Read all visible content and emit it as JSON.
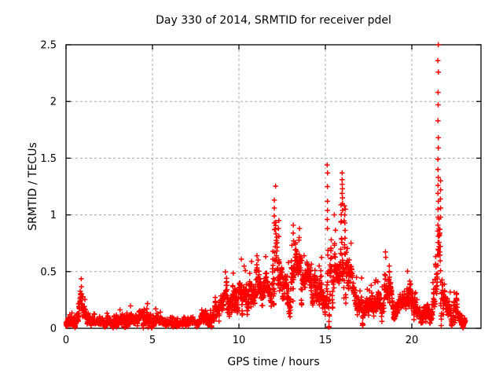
{
  "chart_data": {
    "type": "scatter",
    "title": "Day 330 of 2014, SRMTID for receiver pdel",
    "xlabel": "GPS time / hours",
    "ylabel": "SRMTID / TECUs",
    "xlim": [
      0,
      24
    ],
    "ylim": [
      0,
      2.5
    ],
    "xticks": [
      0,
      5,
      10,
      15,
      20
    ],
    "xtick_labels": [
      "0",
      "5",
      "10",
      "15",
      "20"
    ],
    "yticks": [
      0,
      0.5,
      1,
      1.5,
      2,
      2.5
    ],
    "ytick_labels": [
      "0",
      "0.5",
      "1",
      "1.5",
      "2",
      "2.5"
    ],
    "grid": true,
    "legend": "none",
    "marker": "plus",
    "colors": {
      "marker": "#ff0000",
      "grid": "#a8a8a8",
      "frame": "#000000",
      "text": "#000000",
      "background": "#ffffff"
    },
    "x_start": 0.0,
    "x_end": 23.1,
    "sample_interval_hours": 0.0083333,
    "envelope_note": "piecewise-linear band read off the plot: [hour, typical value, spread] in TECUs",
    "envelope": [
      [
        0.0,
        0.055,
        0.03
      ],
      [
        0.5,
        0.065,
        0.03
      ],
      [
        0.75,
        0.11,
        0.045
      ],
      [
        0.95,
        0.2,
        0.068
      ],
      [
        1.1,
        0.13,
        0.05
      ],
      [
        1.3,
        0.075,
        0.035
      ],
      [
        1.8,
        0.05,
        0.028
      ],
      [
        2.3,
        0.052,
        0.028
      ],
      [
        2.8,
        0.078,
        0.036
      ],
      [
        3.2,
        0.058,
        0.03
      ],
      [
        3.6,
        0.078,
        0.036
      ],
      [
        4.0,
        0.068,
        0.034
      ],
      [
        4.4,
        0.09,
        0.045
      ],
      [
        4.7,
        0.105,
        0.05
      ],
      [
        5.1,
        0.09,
        0.045
      ],
      [
        5.5,
        0.068,
        0.034
      ],
      [
        6.0,
        0.048,
        0.025
      ],
      [
        6.6,
        0.04,
        0.022
      ],
      [
        7.2,
        0.042,
        0.022
      ],
      [
        7.7,
        0.06,
        0.03
      ],
      [
        8.1,
        0.085,
        0.04
      ],
      [
        8.6,
        0.13,
        0.05
      ],
      [
        9.0,
        0.215,
        0.075
      ],
      [
        9.4,
        0.265,
        0.085
      ],
      [
        9.8,
        0.275,
        0.085
      ],
      [
        10.2,
        0.3,
        0.095
      ],
      [
        10.6,
        0.375,
        0.1
      ],
      [
        10.9,
        0.33,
        0.09
      ],
      [
        11.2,
        0.415,
        0.105
      ],
      [
        11.5,
        0.375,
        0.1
      ],
      [
        11.8,
        0.4,
        0.1
      ],
      [
        12.05,
        0.52,
        0.2
      ],
      [
        12.2,
        0.45,
        0.15
      ],
      [
        12.35,
        0.42,
        0.13
      ],
      [
        12.6,
        0.36,
        0.1
      ],
      [
        12.9,
        0.38,
        0.11
      ],
      [
        13.15,
        0.5,
        0.16
      ],
      [
        13.4,
        0.48,
        0.15
      ],
      [
        13.7,
        0.44,
        0.13
      ],
      [
        14.0,
        0.4,
        0.11
      ],
      [
        14.3,
        0.36,
        0.1
      ],
      [
        14.6,
        0.32,
        0.09
      ],
      [
        15.0,
        0.28,
        0.1
      ],
      [
        15.15,
        0.5,
        0.28
      ],
      [
        15.4,
        0.43,
        0.14
      ],
      [
        15.6,
        0.52,
        0.19
      ],
      [
        15.8,
        0.4,
        0.12
      ],
      [
        16.0,
        0.7,
        0.33
      ],
      [
        16.2,
        0.57,
        0.22
      ],
      [
        16.4,
        0.45,
        0.12
      ],
      [
        16.7,
        0.3,
        0.09
      ],
      [
        17.0,
        0.22,
        0.07
      ],
      [
        17.3,
        0.165,
        0.06
      ],
      [
        17.6,
        0.2,
        0.068
      ],
      [
        17.9,
        0.245,
        0.08
      ],
      [
        18.2,
        0.17,
        0.06
      ],
      [
        18.5,
        0.25,
        0.095
      ],
      [
        18.68,
        0.33,
        0.14
      ],
      [
        18.9,
        0.15,
        0.058
      ],
      [
        19.2,
        0.14,
        0.055
      ],
      [
        19.5,
        0.22,
        0.08
      ],
      [
        19.75,
        0.4,
        0.105
      ],
      [
        19.9,
        0.44,
        0.105
      ],
      [
        20.05,
        0.3,
        0.1
      ],
      [
        20.2,
        0.15,
        0.06
      ],
      [
        20.5,
        0.1,
        0.04
      ],
      [
        20.75,
        0.16,
        0.062
      ],
      [
        21.0,
        0.1,
        0.042
      ],
      [
        21.2,
        0.12,
        0.055
      ],
      [
        21.4,
        0.33,
        0.19
      ],
      [
        21.55,
        0.58,
        0.27
      ],
      [
        21.7,
        0.5,
        0.23
      ],
      [
        21.85,
        0.28,
        0.11
      ],
      [
        22.0,
        0.22,
        0.09
      ],
      [
        22.2,
        0.1,
        0.045
      ],
      [
        22.35,
        0.09,
        0.04
      ],
      [
        22.55,
        0.155,
        0.06
      ],
      [
        22.75,
        0.1,
        0.045
      ],
      [
        22.95,
        0.075,
        0.035
      ],
      [
        23.1,
        0.062,
        0.03
      ]
    ],
    "spike_columns_note": "isolated high outlier columns read off the plot: hour and TECU values",
    "spike_columns": [
      {
        "x": 12.05,
        "values": [
          1.13,
          1.06,
          0.99,
          0.93,
          0.87
        ]
      },
      {
        "x": 12.3,
        "values": [
          0.95,
          0.88,
          0.81
        ]
      },
      {
        "x": 13.15,
        "values": [
          0.91,
          0.84,
          0.77
        ]
      },
      {
        "x": 13.5,
        "values": [
          0.88,
          0.8
        ]
      },
      {
        "x": 15.12,
        "values": [
          1.44,
          1.37,
          1.25,
          1.12,
          1.04,
          0.96,
          0.88
        ]
      },
      {
        "x": 15.98,
        "values": [
          1.37,
          1.31,
          1.27,
          1.23,
          1.19,
          1.15,
          1.1,
          1.04
        ]
      },
      {
        "x": 16.12,
        "values": [
          1.08,
          1.0,
          0.93
        ]
      },
      {
        "x": 18.7,
        "values": [
          0.55,
          0.5,
          0.45
        ]
      },
      {
        "x": 21.52,
        "values": [
          2.5,
          2.36,
          2.26,
          2.08,
          1.97,
          1.83,
          1.68,
          1.59,
          1.49,
          1.4,
          1.33,
          1.26,
          1.19,
          1.12,
          1.05,
          0.98,
          0.91
        ]
      },
      {
        "x": 21.66,
        "values": [
          1.3,
          1.22,
          1.14,
          1.06,
          0.98
        ]
      }
    ]
  }
}
